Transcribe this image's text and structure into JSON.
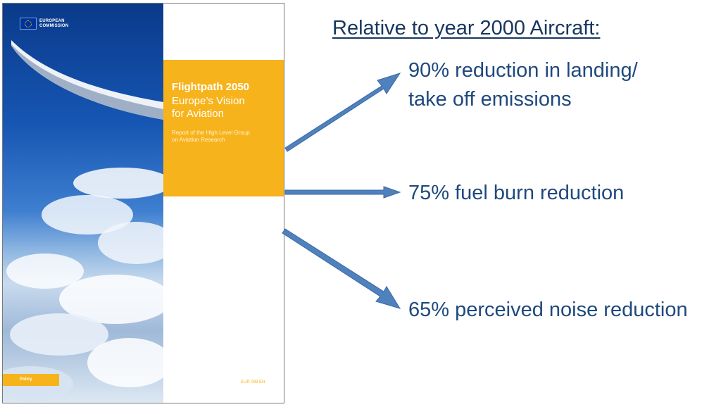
{
  "cover": {
    "logo_line1": "EUROPEAN",
    "logo_line2": "COMMISSION",
    "title": "Flightpath 2050",
    "subtitle_line1": "Europe’s Vision",
    "subtitle_line2": "for Aviation",
    "report_line1": "Report of the High Level Group",
    "report_line2": "on Aviation Research",
    "policy_label": "Policy",
    "code": "EUR 098 EN"
  },
  "heading": "Relative to year 2000 Aircraft:",
  "points": [
    {
      "line1": "90% reduction in landing/",
      "line2": "take off emissions"
    },
    {
      "line1": "75% fuel burn reduction"
    },
    {
      "line1": "65% perceived noise reduction"
    }
  ],
  "colors": {
    "heading": "#17375e",
    "text": "#1f497d",
    "arrow": "#4f81bd",
    "cover_orange": "#f7b31b"
  }
}
